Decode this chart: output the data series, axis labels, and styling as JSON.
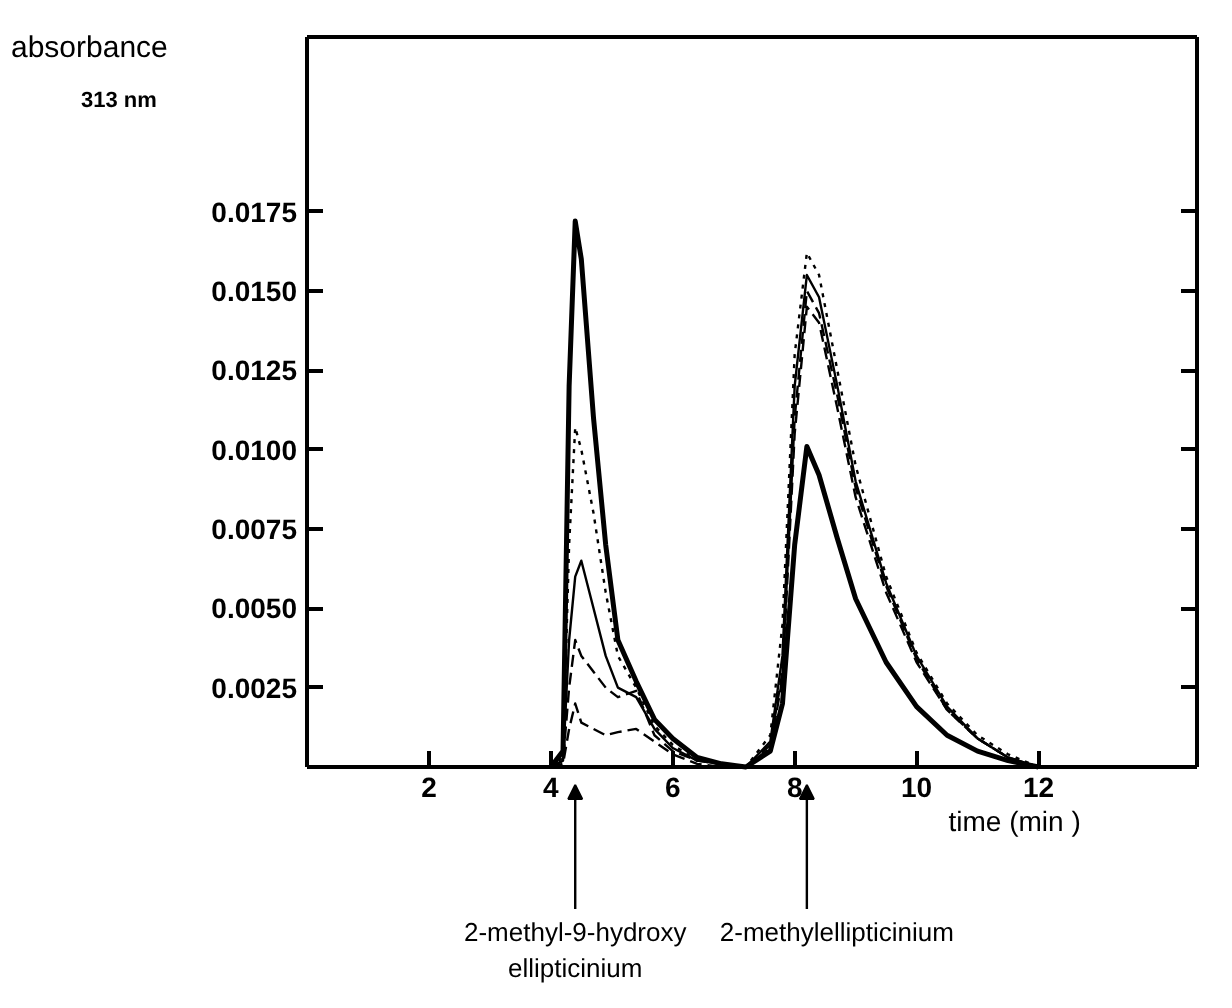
{
  "chart_data": {
    "type": "line",
    "ylabel": "absorbance",
    "xlabel": "time (min )",
    "annotations": [
      "313 nm",
      "2-methyl-9-hydroxy ellipticinium",
      "2-methylellipticinium"
    ],
    "x": [
      4.0,
      4.2,
      4.3,
      4.4,
      4.5,
      4.7,
      4.9,
      5.1,
      5.4,
      5.7,
      6.0,
      6.4,
      6.8,
      7.2,
      7.6,
      7.8,
      8.0,
      8.2,
      8.4,
      8.7,
      9.0,
      9.5,
      10,
      10.5,
      11,
      11.5,
      12
    ],
    "series": [
      {
        "color": "#000000",
        "line_style": "solid",
        "values": [
          0,
          0.0005,
          0.012,
          0.0172,
          0.016,
          0.011,
          0.007,
          0.004,
          0.0027,
          0.0015,
          0.0009,
          0.0003,
          0.0001,
          0,
          0.0005,
          0.002,
          0.007,
          0.0101,
          0.0092,
          0.0072,
          0.0053,
          0.0033,
          0.0019,
          0.001,
          0.0005,
          0.0002,
          0
        ]
      },
      {
        "color": "#000000",
        "line_style": "dotted",
        "values": [
          0,
          0.0003,
          0.007,
          0.0107,
          0.01,
          0.008,
          0.0055,
          0.0035,
          0.0025,
          0.0013,
          0.0007,
          0.0002,
          0.0001,
          0,
          0.001,
          0.0045,
          0.013,
          0.0162,
          0.0155,
          0.0125,
          0.0095,
          0.006,
          0.0036,
          0.002,
          0.001,
          0.0004,
          0
        ]
      },
      {
        "color": "#000000",
        "line_style": "solid",
        "values": [
          0,
          0.0002,
          0.004,
          0.006,
          0.0065,
          0.005,
          0.0035,
          0.0025,
          0.0022,
          0.0012,
          0.0006,
          0.0002,
          0.0001,
          0,
          0.0008,
          0.0035,
          0.012,
          0.0155,
          0.0148,
          0.012,
          0.009,
          0.0058,
          0.0035,
          0.0019,
          0.0009,
          0.0003,
          0
        ]
      },
      {
        "color": "#000000",
        "line_style": "dashed",
        "values": [
          0,
          0.0002,
          0.0025,
          0.004,
          0.0035,
          0.003,
          0.0025,
          0.0022,
          0.0024,
          0.001,
          0.0005,
          0.0002,
          0.0001,
          0,
          0.0007,
          0.003,
          0.011,
          0.015,
          0.0143,
          0.0117,
          0.0088,
          0.0057,
          0.0034,
          0.0018,
          0.0009,
          0.0003,
          0
        ]
      },
      {
        "color": "#000000",
        "line_style": "dashed",
        "values": [
          0,
          0.0001,
          0.0012,
          0.002,
          0.0014,
          0.0012,
          0.001,
          0.0011,
          0.0012,
          0.0008,
          0.0004,
          0.0001,
          0,
          0,
          0.0006,
          0.0028,
          0.0105,
          0.0145,
          0.014,
          0.0113,
          0.0085,
          0.0055,
          0.0033,
          0.0018,
          0.0009,
          0.0003,
          0
        ]
      }
    ],
    "xlim": [
      0,
      14.6
    ],
    "ylim": [
      0,
      0.023
    ],
    "xticks": [
      2,
      4,
      6,
      8,
      10,
      12
    ],
    "yticks": [
      {
        "value": 0.0025,
        "label": "0.0025"
      },
      {
        "value": 0.005,
        "label": "0.0050"
      },
      {
        "value": 0.0075,
        "label": "0.0075"
      },
      {
        "value": 0.01,
        "label": "0.0100"
      },
      {
        "value": 0.0125,
        "label": "0.0125"
      },
      {
        "value": 0.015,
        "label": "0.0150"
      },
      {
        "value": 0.0175,
        "label": "0.0175"
      }
    ],
    "grid": false
  }
}
